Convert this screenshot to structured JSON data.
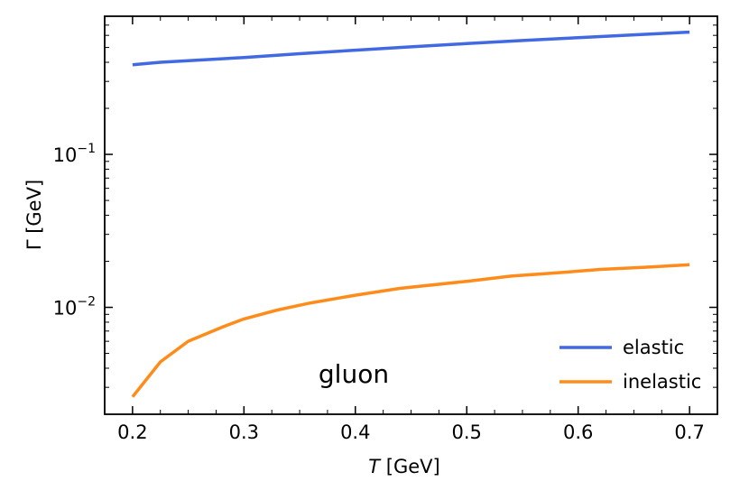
{
  "chart_data": {
    "type": "line",
    "xlabel_italic": "T",
    "xlabel_rest": " [GeV]",
    "ylabel": "Γ [GeV]",
    "yscale": "log",
    "xlim": [
      0.175,
      0.725
    ],
    "ylim": [
      0.002,
      0.8
    ],
    "xticks": [
      0.2,
      0.3,
      0.4,
      0.5,
      0.6,
      0.7
    ],
    "xtick_labels": [
      "0.2",
      "0.3",
      "0.4",
      "0.5",
      "0.6",
      "0.7"
    ],
    "yticks_major": [
      {
        "value": 0.1,
        "base": "10",
        "exp": "−1"
      },
      {
        "value": 0.01,
        "base": "10",
        "exp": "−2"
      }
    ],
    "annotation": "gluon",
    "legend_position": "lower-right",
    "series": [
      {
        "name": "elastic",
        "color": "#4169e1",
        "x": [
          0.2,
          0.225,
          0.25,
          0.3,
          0.35,
          0.4,
          0.45,
          0.5,
          0.55,
          0.6,
          0.65,
          0.7
        ],
        "y": [
          0.385,
          0.4,
          0.41,
          0.43,
          0.455,
          0.48,
          0.505,
          0.53,
          0.555,
          0.58,
          0.605,
          0.63
        ]
      },
      {
        "name": "inelastic",
        "color": "#ff8c1a",
        "x": [
          0.2,
          0.225,
          0.25,
          0.28,
          0.3,
          0.33,
          0.36,
          0.4,
          0.44,
          0.5,
          0.54,
          0.58,
          0.62,
          0.66,
          0.7
        ],
        "y": [
          0.0026,
          0.0044,
          0.006,
          0.0074,
          0.0084,
          0.0096,
          0.0107,
          0.012,
          0.0133,
          0.0148,
          0.016,
          0.0168,
          0.0177,
          0.0183,
          0.019
        ]
      }
    ]
  }
}
